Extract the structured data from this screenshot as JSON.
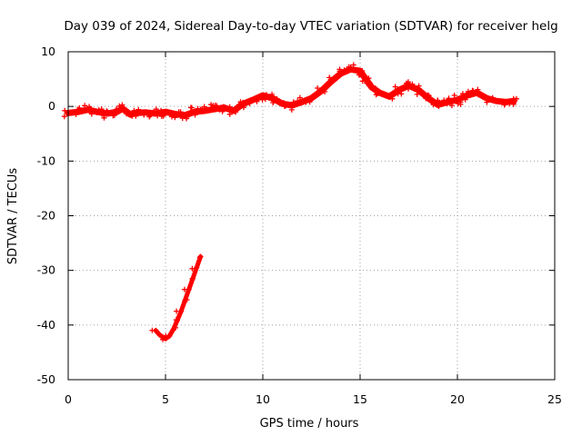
{
  "chart_data": {
    "type": "scatter",
    "title": "Day 039 of 2024, Sidereal Day-to-day VTEC variation (SDTVAR) for receiver helg",
    "xlabel": "GPS time / hours",
    "ylabel": "SDTVAR / TECUs",
    "xlim": [
      0,
      25
    ],
    "ylim": [
      -50,
      10
    ],
    "xticks": [
      0,
      5,
      10,
      15,
      20,
      25
    ],
    "yticks": [
      -50,
      -40,
      -30,
      -20,
      -10,
      0,
      10
    ],
    "grid": true,
    "series": [
      {
        "name": "SDTVAR",
        "color": "#ff0000",
        "marker": "plus",
        "segments": [
          {
            "x": [
              0.0,
              0.5,
              1.0,
              1.5,
              2.0,
              2.5,
              2.8,
              3.2,
              3.5,
              4.0,
              4.5,
              5.0,
              5.5,
              6.0,
              6.5,
              7.0,
              7.5,
              8.0,
              8.5,
              9.0,
              9.5,
              10.0,
              10.5,
              11.0,
              11.5,
              12.0,
              12.5,
              13.0,
              13.5,
              14.0,
              14.5,
              15.0,
              15.3,
              15.6,
              16.0,
              16.5,
              17.0,
              17.5,
              18.0,
              18.5,
              19.0,
              19.5,
              20.0,
              20.5,
              21.0,
              21.5,
              22.0,
              22.5,
              22.9
            ],
            "y": [
              -1.2,
              -1.0,
              -0.6,
              -1.0,
              -1.3,
              -1.0,
              -0.4,
              -1.5,
              -1.2,
              -1.1,
              -1.3,
              -1.0,
              -1.4,
              -1.6,
              -1.0,
              -0.8,
              -0.5,
              -0.2,
              -0.8,
              0.5,
              1.2,
              2.0,
              1.5,
              0.5,
              0.2,
              0.8,
              1.5,
              2.8,
              4.5,
              6.0,
              6.8,
              6.5,
              5.0,
              3.5,
              2.5,
              1.8,
              3.0,
              3.8,
              3.0,
              1.5,
              0.3,
              0.8,
              1.2,
              2.0,
              2.5,
              1.5,
              1.0,
              0.8,
              1.0
            ]
          },
          {
            "x": [
              4.5,
              4.7,
              4.9,
              5.0,
              5.2,
              5.4,
              5.6,
              5.8,
              6.0,
              6.2,
              6.4,
              6.6,
              6.8
            ],
            "y": [
              -41.0,
              -41.8,
              -42.3,
              -42.5,
              -42.0,
              -40.8,
              -39.2,
              -37.5,
              -35.5,
              -33.5,
              -31.5,
              -29.5,
              -27.5
            ]
          }
        ]
      }
    ]
  }
}
